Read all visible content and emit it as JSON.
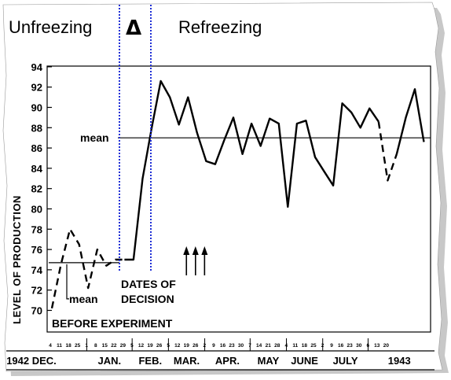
{
  "header": {
    "left_label": "Unfreezing",
    "delta_symbol": "Δ",
    "right_label": "Refreezing",
    "delta_color": "#1e7a1e",
    "band_color": "#1f2fd6"
  },
  "annotations": {
    "mean_after": "mean",
    "mean_before": "mean",
    "decision_line1": "DATES OF",
    "decision_line2": "DECISION",
    "before_experiment": "BEFORE EXPERIMENT"
  },
  "chart_data": {
    "type": "line",
    "ylabel": "LEVEL OF PRODUCTION",
    "ylim": [
      69,
      94
    ],
    "yticks": [
      70,
      72,
      74,
      76,
      78,
      80,
      82,
      84,
      86,
      88,
      90,
      92,
      94
    ],
    "x_months": [
      "1942 DEC.",
      "JAN.",
      "FEB.",
      "MAR.",
      "APR.",
      "MAY",
      "JUNE",
      "JULY",
      "1943"
    ],
    "x_days": [
      [
        "4",
        "11",
        "18",
        "25"
      ],
      [
        "1",
        "8",
        "15",
        "22",
        "29"
      ],
      [
        "5",
        "12",
        "19",
        "26"
      ],
      [
        "5",
        "12",
        "19",
        "26"
      ],
      [
        "2",
        "9",
        "16",
        "23",
        "30"
      ],
      [
        "7",
        "14",
        "21",
        "28"
      ],
      [
        "4",
        "11",
        "18",
        "25"
      ],
      [
        "2",
        "9",
        "16",
        "23",
        "30"
      ],
      [
        "6",
        "13",
        "20"
      ]
    ],
    "before_mean": 74.7,
    "after_mean": 87,
    "decision_weeks": [
      15,
      16,
      17
    ],
    "series": [
      {
        "segments": [
          {
            "style": "dashed",
            "points": [
              [
                0,
                70.2
              ],
              [
                1,
                74.5
              ],
              [
                2,
                78
              ],
              [
                3,
                76.5
              ],
              [
                4,
                72.2
              ],
              [
                5,
                76
              ],
              [
                6,
                74.4
              ],
              [
                7,
                75
              ],
              [
                8,
                75
              ]
            ]
          },
          {
            "style": "solid",
            "points": [
              [
                8,
                75
              ],
              [
                9,
                75
              ],
              [
                10,
                83
              ],
              [
                11,
                88
              ],
              [
                12,
                92.6
              ],
              [
                13,
                91
              ],
              [
                14,
                88.3
              ],
              [
                15,
                91
              ],
              [
                16,
                87.5
              ],
              [
                17,
                84.7
              ],
              [
                18,
                84.4
              ],
              [
                19,
                86.8
              ],
              [
                20,
                89
              ],
              [
                21,
                85.4
              ],
              [
                22,
                88.4
              ],
              [
                23,
                86.2
              ],
              [
                24,
                88.9
              ],
              [
                25,
                88.4
              ],
              [
                26,
                80.2
              ],
              [
                27,
                88.4
              ],
              [
                28,
                88.7
              ],
              [
                29,
                85.1
              ],
              [
                30,
                83.7
              ],
              [
                31,
                82.3
              ],
              [
                32,
                90.4
              ],
              [
                33,
                89.5
              ],
              [
                34,
                88
              ],
              [
                35,
                89.9
              ],
              [
                36,
                88.6
              ]
            ]
          },
          {
            "style": "dashed",
            "points": [
              [
                36,
                88.6
              ],
              [
                37,
                82.8
              ],
              [
                38,
                85.4
              ]
            ]
          },
          {
            "style": "solid",
            "points": [
              [
                38,
                85.4
              ],
              [
                39,
                89
              ],
              [
                40,
                91.8
              ],
              [
                41,
                86.6
              ]
            ]
          }
        ]
      }
    ]
  }
}
